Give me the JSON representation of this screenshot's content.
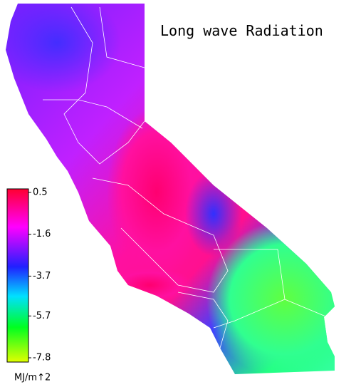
{
  "title": "Long wave Radiation",
  "colorbar": {
    "ticks": [
      0.5,
      -1.6,
      -3.7,
      -5.7,
      -7.8
    ],
    "unit": "MJ/m↑2"
  }
}
